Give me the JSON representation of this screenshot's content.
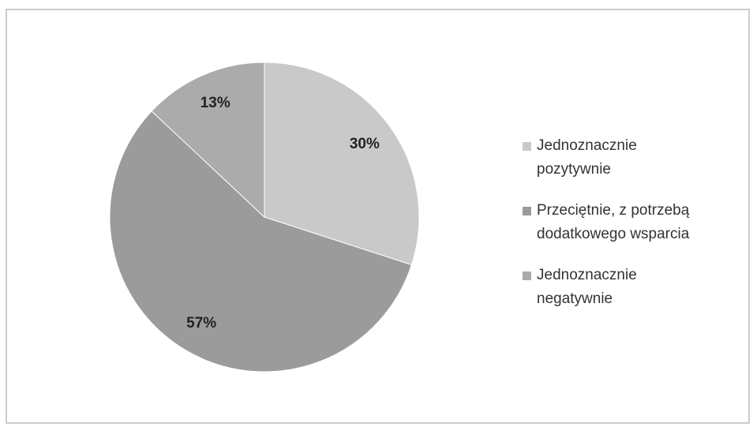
{
  "chart_data": {
    "type": "pie",
    "categories": [
      "Jednoznacznie pozytywnie",
      "Przeciętnie, z potrzebą dodatkowego wsparcia",
      "Jednoznacznie negatywnie"
    ],
    "values": [
      30,
      57,
      13
    ],
    "value_labels": [
      "30%",
      "57%",
      "13%"
    ],
    "colors": [
      "#c9c9c9",
      "#9b9b9b",
      "#ababab"
    ],
    "legend": "right"
  }
}
